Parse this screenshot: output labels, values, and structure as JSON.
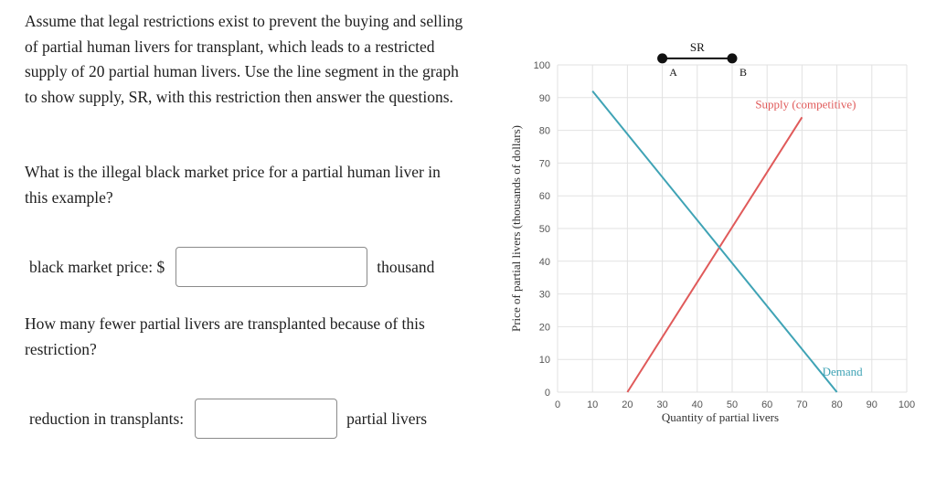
{
  "question": {
    "intro": "Assume that legal restrictions exist to prevent the buying and selling of partial human livers for transplant, which leads to a restricted supply of 20 partial human livers. Use the line segment in the graph to show supply, SR, with this restriction then answer the questions.",
    "q1": "What is the illegal black market price for a partial human liver in this example?",
    "q1_label": "black market price: $",
    "q1_value": "",
    "q1_unit": "thousand",
    "q2": "How many fewer partial livers are transplanted because of this restriction?",
    "q2_label": "reduction in transplants:",
    "q2_value": "",
    "q2_unit": "partial livers"
  },
  "chart_data": {
    "type": "line",
    "xlabel": "Quantity of partial livers",
    "ylabel": "Price of partial livers (thousands of dollars)",
    "xlim": [
      0,
      100
    ],
    "ylim": [
      0,
      100
    ],
    "xticks": [
      0,
      10,
      20,
      30,
      40,
      50,
      60,
      70,
      80,
      90,
      100
    ],
    "yticks": [
      0,
      10,
      20,
      30,
      40,
      50,
      60,
      70,
      80,
      90,
      100
    ],
    "grid": true,
    "series": [
      {
        "name": "Supply (competitive)",
        "color": "#e05a5a",
        "x": [
          20,
          70
        ],
        "y": [
          0,
          84
        ]
      },
      {
        "name": "Demand",
        "color": "#3fa3b5",
        "x": [
          10,
          80
        ],
        "y": [
          92,
          0
        ]
      }
    ],
    "segment": {
      "name": "SR",
      "color": "#111111",
      "points": [
        {
          "label": "A",
          "x": 30,
          "y": 102
        },
        {
          "label": "B",
          "x": 50,
          "y": 102
        }
      ]
    }
  }
}
